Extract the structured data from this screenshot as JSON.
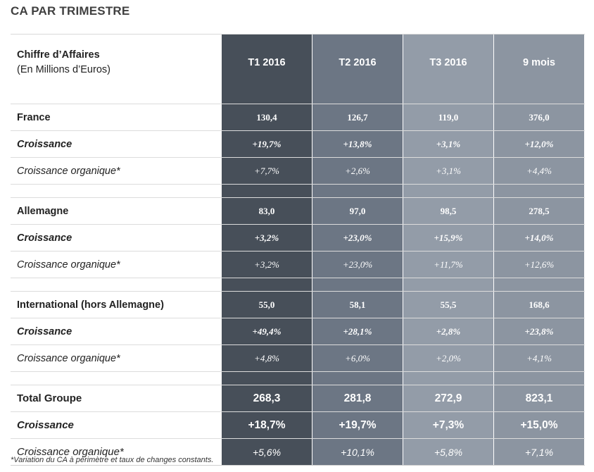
{
  "title": "CA PAR TRIMESTRE",
  "header": {
    "label_line1": "Chiffre d’Affaires",
    "label_line2": "(En Millions d’Euros)",
    "columns": [
      "T1 2016",
      "T2 2016",
      "T3 2016",
      "9 mois"
    ]
  },
  "sections": [
    {
      "rows": [
        {
          "label": "France",
          "values": [
            "130,4",
            "126,7",
            "119,0",
            "376,0"
          ]
        },
        {
          "label": "Croissance",
          "values": [
            "+19,7%",
            "+13,8%",
            "+3,1%",
            "+12,0%"
          ]
        },
        {
          "label": "Croissance organique*",
          "values": [
            "+7,7%",
            "+2,6%",
            "+3,1%",
            "+4,4%"
          ]
        }
      ]
    },
    {
      "rows": [
        {
          "label": "Allemagne",
          "values": [
            "83,0",
            "97,0",
            "98,5",
            "278,5"
          ]
        },
        {
          "label": "Croissance",
          "values": [
            "+3,2%",
            "+23,0%",
            "+15,9%",
            "+14,0%"
          ]
        },
        {
          "label": "Croissance organique*",
          "values": [
            "+3,2%",
            "+23,0%",
            "+11,7%",
            "+12,6%"
          ]
        }
      ]
    },
    {
      "rows": [
        {
          "label": "International (hors Allemagne)",
          "values": [
            "55,0",
            "58,1",
            "55,5",
            "168,6"
          ]
        },
        {
          "label": "Croissance",
          "values": [
            "+49,4%",
            "+28,1%",
            "+2,8%",
            "+23,8%"
          ]
        },
        {
          "label": "Croissance organique*",
          "values": [
            "+4,8%",
            "+6,0%",
            "+2,0%",
            "+4,1%"
          ]
        }
      ]
    },
    {
      "rows": [
        {
          "label": "Total Groupe",
          "values": [
            "268,3",
            "281,8",
            "272,9",
            "823,1"
          ]
        },
        {
          "label": "Croissance",
          "values": [
            "+18,7%",
            "+19,7%",
            "+7,3%",
            "+15,0%"
          ]
        },
        {
          "label": "Croissance organique*",
          "values": [
            "+5,6%",
            "+10,1%",
            "+5,8%",
            "+7,1%"
          ]
        }
      ]
    }
  ],
  "footnote": "*Variation du CA à périmètre et taux de changes constants.",
  "colors": {
    "col_t1": "#474f59",
    "col_t2": "#6c7684",
    "col_t3": "#939ca8",
    "col_9m": "#8c95a1"
  }
}
